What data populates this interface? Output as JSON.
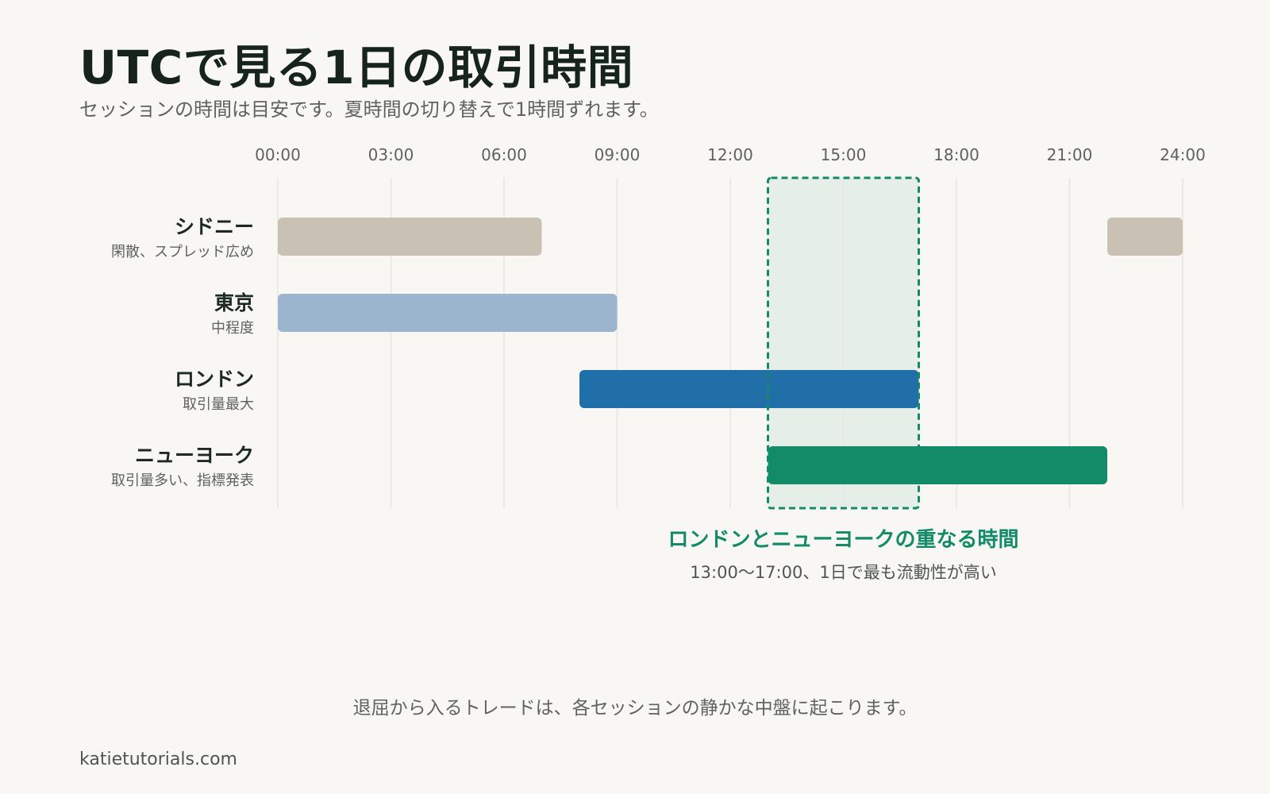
{
  "header": {
    "title": "UTCで見る1日の取引時間",
    "subtitle": "セッションの時間は目安です。夏時間の切り替えで1時間ずれます。"
  },
  "colors": {
    "background": "#f8f7f4",
    "grid": "#e7e6e0",
    "tick_text": "#5e635f",
    "label_text": "#1d2a24",
    "note_text": "#5e635f",
    "sydney": "#c9c1b3",
    "tokyo": "#9cb5ce",
    "london": "#216fa8",
    "newyork": "#138a68",
    "overlap_fill": "#e5eee7",
    "overlap_border": "#138a68"
  },
  "chart_data": {
    "type": "gantt",
    "x_unit": "hour (UTC)",
    "x_range": [
      0,
      24
    ],
    "x_ticks": [
      "00:00",
      "03:00",
      "06:00",
      "09:00",
      "12:00",
      "15:00",
      "18:00",
      "21:00",
      "24:00"
    ],
    "grid": true,
    "sessions": [
      {
        "key": "sydney",
        "name": "シドニー",
        "note": "閑散、スプレッド広め",
        "segments": [
          [
            0,
            7
          ],
          [
            22,
            24
          ]
        ]
      },
      {
        "key": "tokyo",
        "name": "東京",
        "note": "中程度",
        "segments": [
          [
            0,
            9
          ]
        ]
      },
      {
        "key": "london",
        "name": "ロンドン",
        "note": "取引量最大",
        "segments": [
          [
            8,
            17
          ]
        ]
      },
      {
        "key": "newyork",
        "name": "ニューヨーク",
        "note": "取引量多い、指標発表",
        "segments": [
          [
            13,
            22
          ]
        ]
      }
    ],
    "highlight": {
      "range": [
        13,
        17
      ],
      "title": "ロンドンとニューヨークの重なる時間",
      "caption": "13:00〜17:00、1日で最も流動性が高い"
    }
  },
  "footer": {
    "note": "退屈から入るトレードは、各セッションの静かな中盤に起こります。",
    "site": "katietutorials.com"
  }
}
